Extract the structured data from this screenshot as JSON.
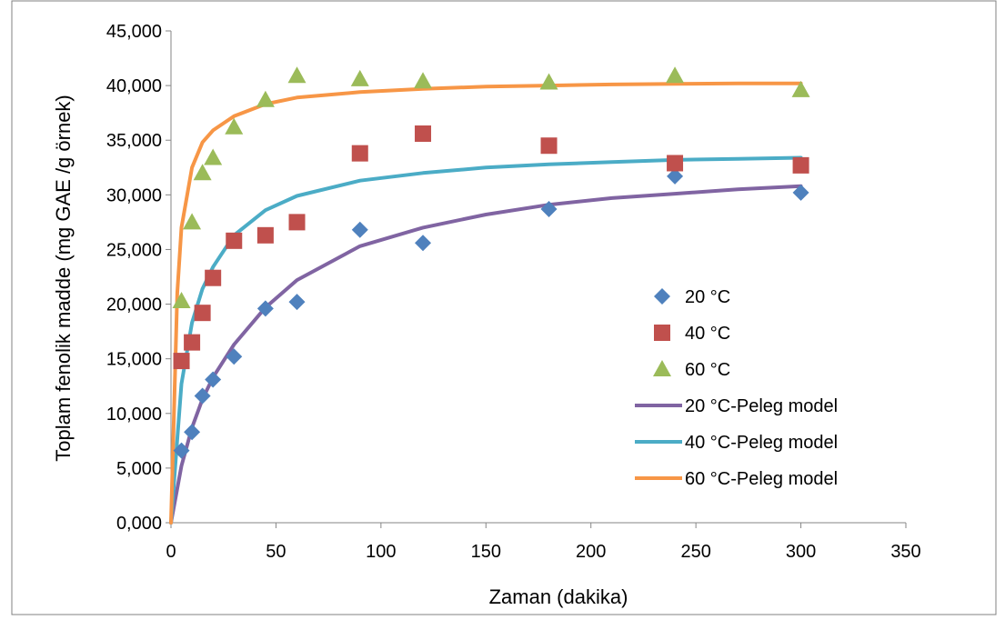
{
  "chart_data": {
    "type": "scatter",
    "title": "",
    "xlabel": "Zaman (dakika)",
    "ylabel": "Toplam fenolik madde (mg GAE /g örnek)",
    "xlim": [
      0,
      350
    ],
    "ylim": [
      0,
      45000
    ],
    "x_ticks": [
      "0",
      "50",
      "100",
      "150",
      "200",
      "250",
      "300",
      "350"
    ],
    "y_ticks": [
      "0,000",
      "5,000",
      "10,000",
      "15,000",
      "20,000",
      "25,000",
      "30,000",
      "35,000",
      "40,000",
      "45,000"
    ],
    "grid": false,
    "legend_position": "right",
    "series": [
      {
        "name": "20 °C",
        "kind": "points",
        "marker": "diamond",
        "color": "#4f81bd",
        "points": [
          [
            5,
            6600
          ],
          [
            10,
            8300
          ],
          [
            15,
            11600
          ],
          [
            20,
            13100
          ],
          [
            30,
            15200
          ],
          [
            45,
            19600
          ],
          [
            60,
            20200
          ],
          [
            90,
            26800
          ],
          [
            120,
            25600
          ],
          [
            180,
            28700
          ],
          [
            240,
            31700
          ],
          [
            300,
            30200
          ]
        ]
      },
      {
        "name": "40 °C",
        "kind": "points",
        "marker": "square",
        "color": "#c0504d",
        "points": [
          [
            5,
            14800
          ],
          [
            10,
            16500
          ],
          [
            15,
            19200
          ],
          [
            20,
            22400
          ],
          [
            30,
            25800
          ],
          [
            45,
            26300
          ],
          [
            60,
            27500
          ],
          [
            90,
            33800
          ],
          [
            120,
            35600
          ],
          [
            180,
            34500
          ],
          [
            240,
            32900
          ],
          [
            300,
            32700
          ]
        ]
      },
      {
        "name": "60 °C",
        "kind": "points",
        "marker": "triangle",
        "color": "#9bbb59",
        "points": [
          [
            5,
            20300
          ],
          [
            10,
            27500
          ],
          [
            15,
            32000
          ],
          [
            20,
            33400
          ],
          [
            30,
            36200
          ],
          [
            45,
            38700
          ],
          [
            60,
            40900
          ],
          [
            90,
            40600
          ],
          [
            120,
            40400
          ],
          [
            180,
            40300
          ],
          [
            240,
            40900
          ],
          [
            300,
            39600
          ]
        ]
      },
      {
        "name": "20 °C-Peleg model",
        "kind": "line",
        "color": "#8064a2",
        "points": [
          [
            0,
            0
          ],
          [
            5,
            5200
          ],
          [
            10,
            8700
          ],
          [
            15,
            11300
          ],
          [
            20,
            13300
          ],
          [
            30,
            16300
          ],
          [
            45,
            19700
          ],
          [
            60,
            22200
          ],
          [
            90,
            25300
          ],
          [
            120,
            27000
          ],
          [
            150,
            28200
          ],
          [
            180,
            29100
          ],
          [
            210,
            29700
          ],
          [
            240,
            30100
          ],
          [
            270,
            30500
          ],
          [
            300,
            30800
          ]
        ]
      },
      {
        "name": "40 °C-Peleg model",
        "kind": "line",
        "color": "#4bacc6",
        "points": [
          [
            0,
            0
          ],
          [
            5,
            12700
          ],
          [
            10,
            18300
          ],
          [
            15,
            21400
          ],
          [
            20,
            23400
          ],
          [
            30,
            26300
          ],
          [
            45,
            28600
          ],
          [
            60,
            29900
          ],
          [
            90,
            31300
          ],
          [
            120,
            32000
          ],
          [
            150,
            32500
          ],
          [
            180,
            32800
          ],
          [
            210,
            33000
          ],
          [
            240,
            33200
          ],
          [
            270,
            33300
          ],
          [
            300,
            33400
          ]
        ]
      },
      {
        "name": "60 °C-Peleg model",
        "kind": "line",
        "color": "#f79646",
        "points": [
          [
            0,
            0
          ],
          [
            3,
            21000
          ],
          [
            5,
            27000
          ],
          [
            10,
            32500
          ],
          [
            15,
            34800
          ],
          [
            20,
            35900
          ],
          [
            30,
            37200
          ],
          [
            45,
            38300
          ],
          [
            60,
            38900
          ],
          [
            90,
            39400
          ],
          [
            120,
            39700
          ],
          [
            150,
            39900
          ],
          [
            180,
            40000
          ],
          [
            210,
            40100
          ],
          [
            240,
            40150
          ],
          [
            270,
            40200
          ],
          [
            300,
            40200
          ]
        ]
      }
    ]
  }
}
